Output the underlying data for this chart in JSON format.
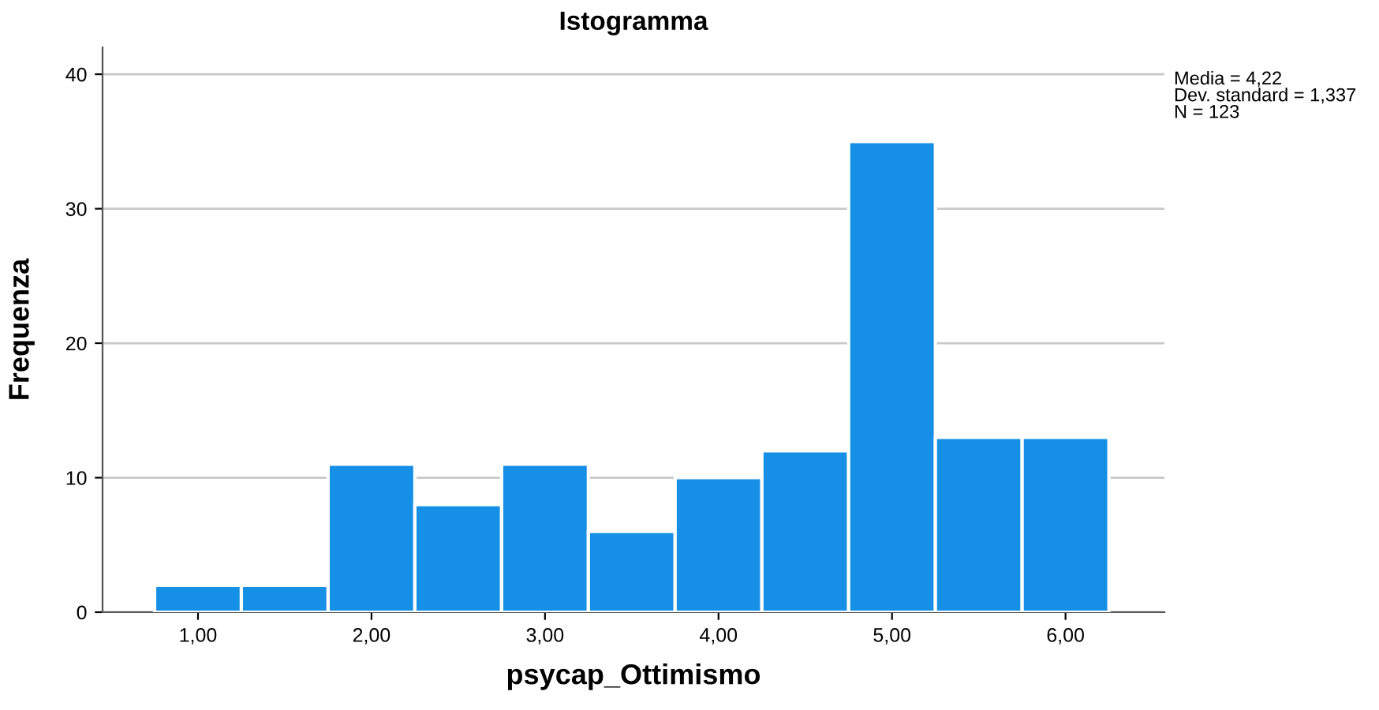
{
  "chart_data": {
    "type": "histogram",
    "title": "Istogramma",
    "xlabel": "psycap_Ottimismo",
    "ylabel": "Frequenza",
    "bins": [
      0.75,
      1.25,
      1.75,
      2.25,
      2.75,
      3.25,
      3.75,
      4.25,
      4.75,
      5.25,
      5.75,
      6.25
    ],
    "values": [
      2,
      2,
      11,
      8,
      11,
      6,
      10,
      12,
      35,
      13,
      13
    ],
    "color": "#1590e6",
    "xlim": [
      0.45,
      6.57
    ],
    "ylim": [
      0,
      42
    ],
    "xticks": [
      {
        "value": 1,
        "label": "1,00"
      },
      {
        "value": 2,
        "label": "2,00"
      },
      {
        "value": 3,
        "label": "3,00"
      },
      {
        "value": 4,
        "label": "4,00"
      },
      {
        "value": 5,
        "label": "5,00"
      },
      {
        "value": 6,
        "label": "6,00"
      }
    ],
    "yticks": [
      0,
      10,
      20,
      30,
      40
    ],
    "grid": "y",
    "annotations": [
      "Media = 4,22",
      "Dev. standard = 1,337",
      "N = 123"
    ]
  }
}
